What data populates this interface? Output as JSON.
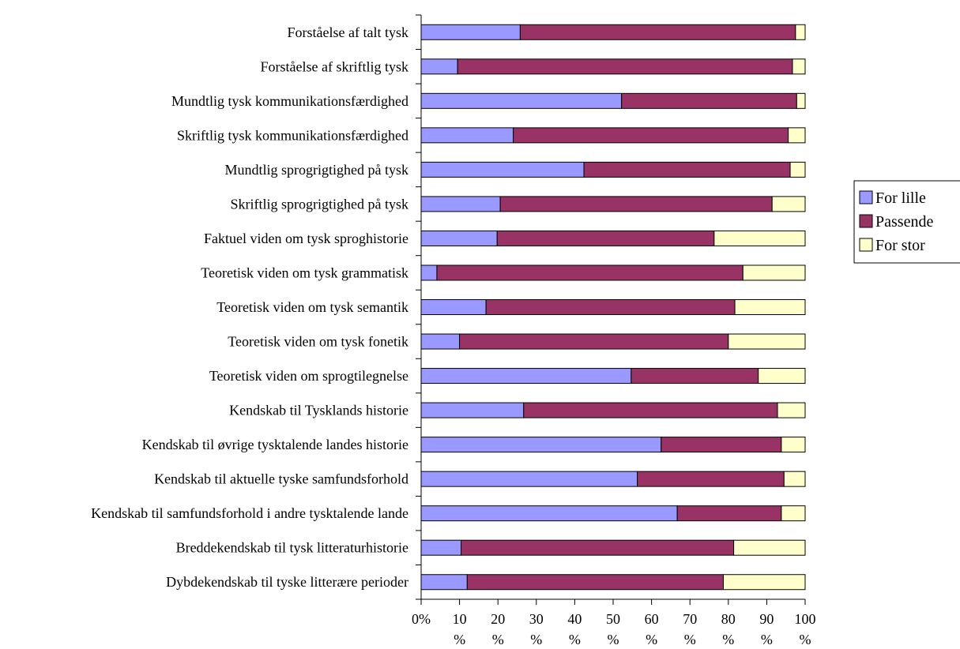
{
  "chart_data": {
    "type": "bar",
    "orientation": "horizontal",
    "stacked": true,
    "percent_stacked": true,
    "categories": [
      "Forståelse af talt tysk",
      "Forståelse af skriftlig tysk",
      "Mundtlig tysk kommunikationsfærdighed",
      "Skriftlig tysk kommunikationsfærdighed",
      "Mundtlig sprogrigtighed på tysk",
      "Skriftlig sprogrigtighed på tysk",
      "Faktuel viden om tysk sproghistorie",
      "Teoretisk viden om tysk grammatisk",
      "Teoretisk viden om tysk semantik",
      "Teoretisk viden om tysk fonetik",
      "Teoretisk viden om sprogtilegnelse",
      "Kendskab til Tysklands historie",
      "Kendskab til øvrige tysktalende landes historie",
      "Kendskab til aktuelle tyske samfundsforhold",
      "Kendskab til samfundsforhold i andre tysktalende lande",
      "Breddekendskab til tysk litteraturhistorie",
      "Dybdekendskab til tyske litterære perioder"
    ],
    "series": [
      {
        "name": "For lille",
        "color": "#9999ff",
        "values": [
          25.8,
          9.5,
          52.2,
          24.0,
          42.4,
          20.6,
          19.8,
          4.1,
          16.9,
          10.0,
          54.7,
          26.7,
          62.5,
          56.3,
          66.7,
          10.4,
          12.0
        ]
      },
      {
        "name": "Passende",
        "color": "#993366",
        "values": [
          71.7,
          87.2,
          45.6,
          71.6,
          53.7,
          70.8,
          56.5,
          79.7,
          64.8,
          70.0,
          33.1,
          66.1,
          31.3,
          38.2,
          27.1,
          71.0,
          66.7
        ]
      },
      {
        "name": "For stor",
        "color": "#ffffcc",
        "values": [
          2.5,
          3.3,
          2.2,
          4.4,
          3.9,
          8.6,
          23.7,
          16.2,
          18.3,
          20.0,
          12.2,
          7.2,
          6.2,
          5.5,
          6.2,
          18.6,
          21.3
        ]
      }
    ],
    "x_ticks": [
      [
        "0%",
        ""
      ],
      [
        "10",
        "%"
      ],
      [
        "20",
        "%"
      ],
      [
        "30",
        "%"
      ],
      [
        "40",
        "%"
      ],
      [
        "50",
        "%"
      ],
      [
        "60",
        "%"
      ],
      [
        "70",
        "%"
      ],
      [
        "80",
        "%"
      ],
      [
        "90",
        "%"
      ],
      [
        "100",
        "%"
      ]
    ],
    "xlim": [
      0,
      100
    ],
    "grid": false,
    "legend_position": "right"
  }
}
